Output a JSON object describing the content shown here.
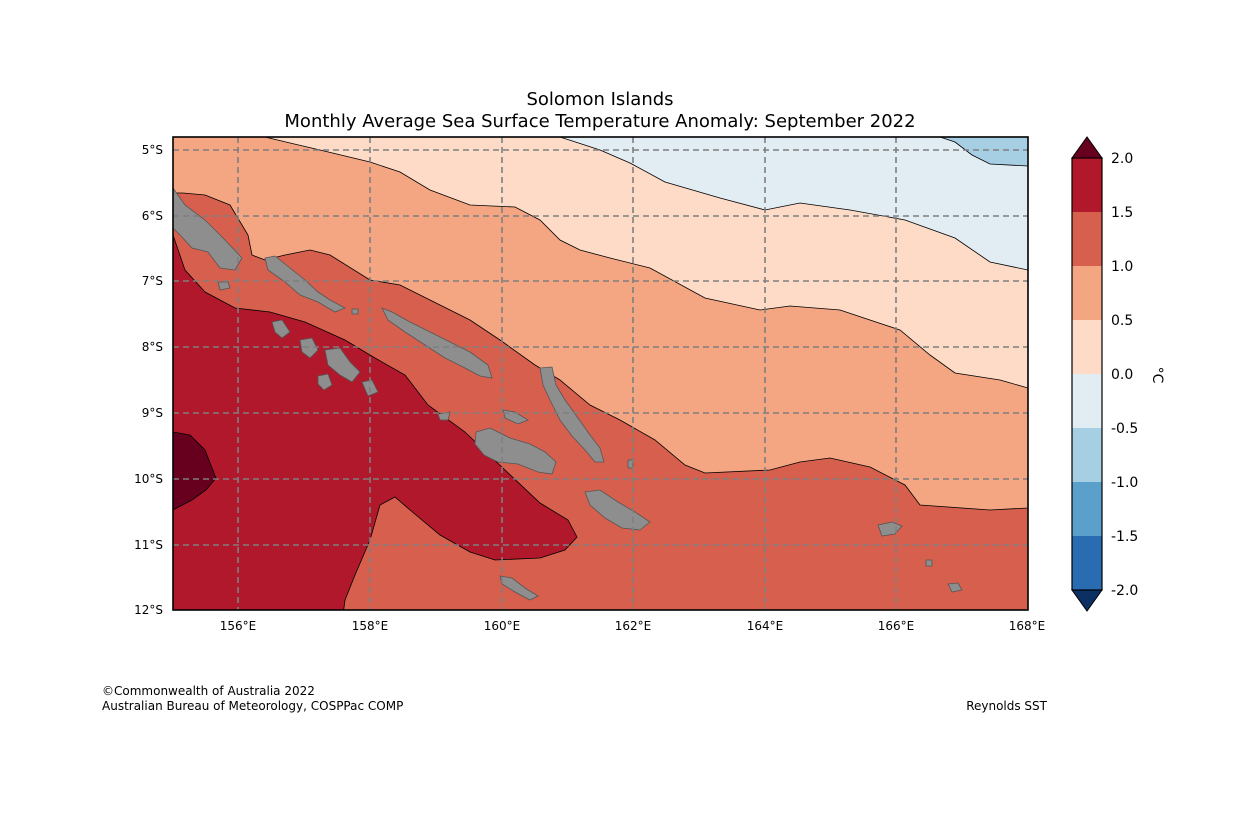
{
  "title": {
    "line1": "Solomon Islands",
    "line2": "Monthly Average Sea Surface Temperature Anomaly: September 2022"
  },
  "map": {
    "lat_labels": [
      "5°S",
      "6°S",
      "7°S",
      "8°S",
      "9°S",
      "10°S",
      "11°S",
      "12°S"
    ],
    "lon_labels": [
      "156°E",
      "158°E",
      "160°E",
      "162°E",
      "164°E",
      "166°E",
      "168°E"
    ]
  },
  "colorbar": {
    "unit_label": "°C",
    "tick_labels": [
      "2.0",
      "1.5",
      "1.0",
      "0.5",
      "0.0",
      "-0.5",
      "-1.0",
      "-1.5",
      "-2.0"
    ],
    "colors": {
      "above_max": "#67001f",
      "c_1_5_to_2_0": "#b2182b",
      "c_1_0_to_1_5": "#d6604d",
      "c_0_5_to_1_0": "#f4a582",
      "c_0_0_to_0_5": "#fddbc7",
      "c_n0_5_to_0_0": "#e1ecf3",
      "c_n1_0_to_n0_5": "#a7cfe4",
      "c_n1_5_to_n1_0": "#5aa0cb",
      "c_n2_0_to_n1_5": "#2a6cb2",
      "below_min": "#0c3062"
    }
  },
  "footer": {
    "copyright": "©Commonwealth of Australia 2022",
    "org": "Australian Bureau of Meteorology, COSPPac COMP",
    "source": "Reynolds SST"
  }
}
